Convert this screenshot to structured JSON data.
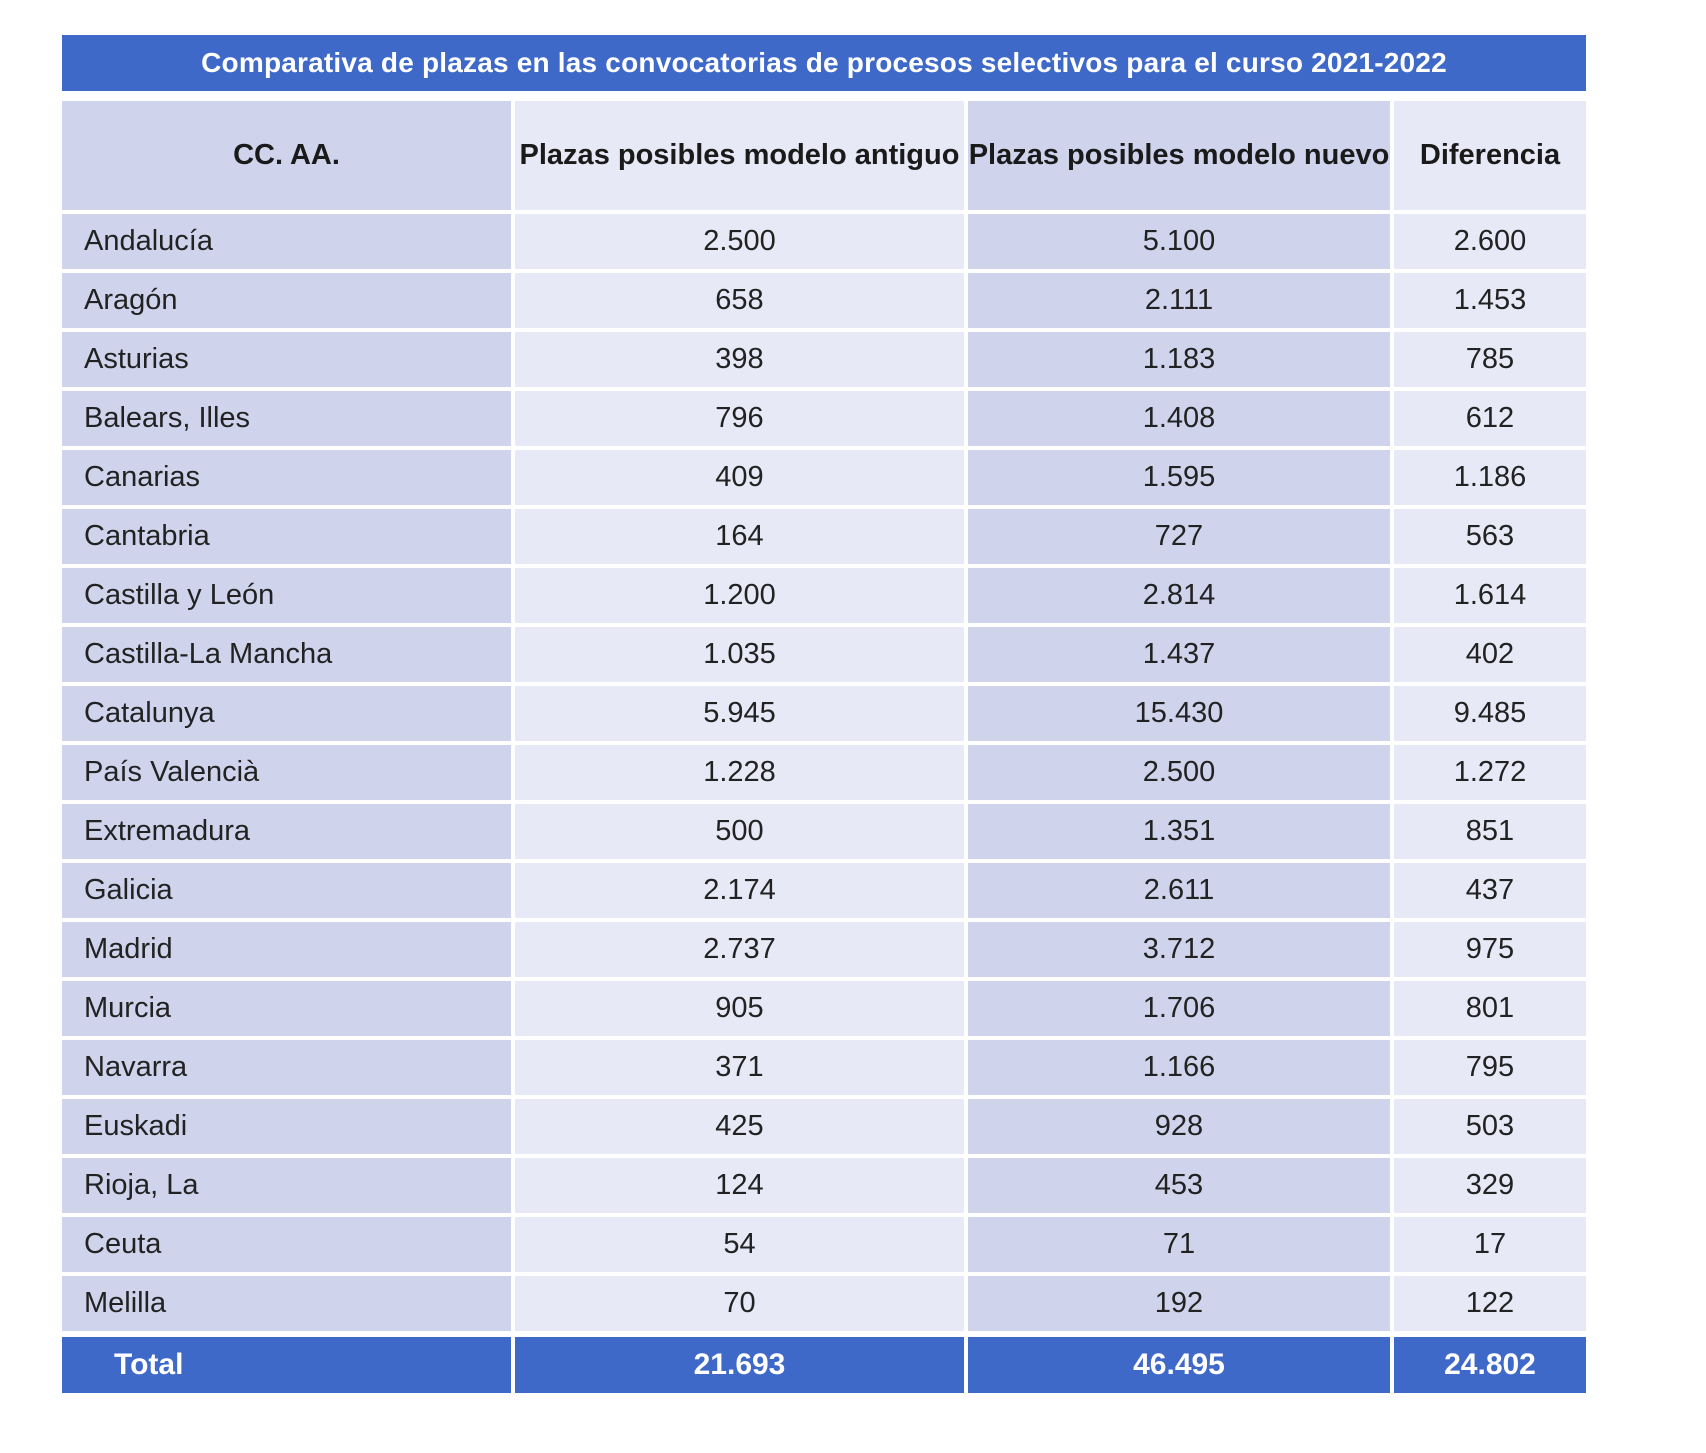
{
  "table": {
    "title": "Comparativa de plazas en las convocatorias de procesos selectivos para el curso 2021-2022",
    "headers": [
      "CC. AA.",
      "Plazas posibles modelo antiguo",
      "Plazas posibles modelo nuevo",
      "Diferencia"
    ],
    "rows": [
      [
        "Andalucía",
        "2.500",
        "5.100",
        "2.600"
      ],
      [
        "Aragón",
        "658",
        "2.111",
        "1.453"
      ],
      [
        "Asturias",
        "398",
        "1.183",
        "785"
      ],
      [
        "Balears, Illes",
        "796",
        "1.408",
        "612"
      ],
      [
        "Canarias",
        "409",
        "1.595",
        "1.186"
      ],
      [
        "Cantabria",
        "164",
        "727",
        "563"
      ],
      [
        "Castilla y León",
        "1.200",
        "2.814",
        "1.614"
      ],
      [
        "Castilla-La Mancha",
        "1.035",
        "1.437",
        "402"
      ],
      [
        "Catalunya",
        "5.945",
        "15.430",
        "9.485"
      ],
      [
        "País Valencià",
        "1.228",
        "2.500",
        "1.272"
      ],
      [
        "Extremadura",
        "500",
        "1.351",
        "851"
      ],
      [
        "Galicia",
        "2.174",
        "2.611",
        "437"
      ],
      [
        "Madrid",
        "2.737",
        "3.712",
        "975"
      ],
      [
        "Murcia",
        "905",
        "1.706",
        "801"
      ],
      [
        "Navarra",
        "371",
        "1.166",
        "795"
      ],
      [
        "Euskadi",
        "425",
        "928",
        "503"
      ],
      [
        "Rioja, La",
        "124",
        "453",
        "329"
      ],
      [
        "Ceuta",
        "54",
        "71",
        "17"
      ],
      [
        "Melilla",
        "70",
        "192",
        "122"
      ]
    ],
    "total": [
      "Total",
      "21.693",
      "46.495",
      "24.802"
    ]
  },
  "colors": {
    "accent_blue": "#3f69c8",
    "column_dark": "#cfd4ec",
    "column_light": "#e8e9f6"
  }
}
